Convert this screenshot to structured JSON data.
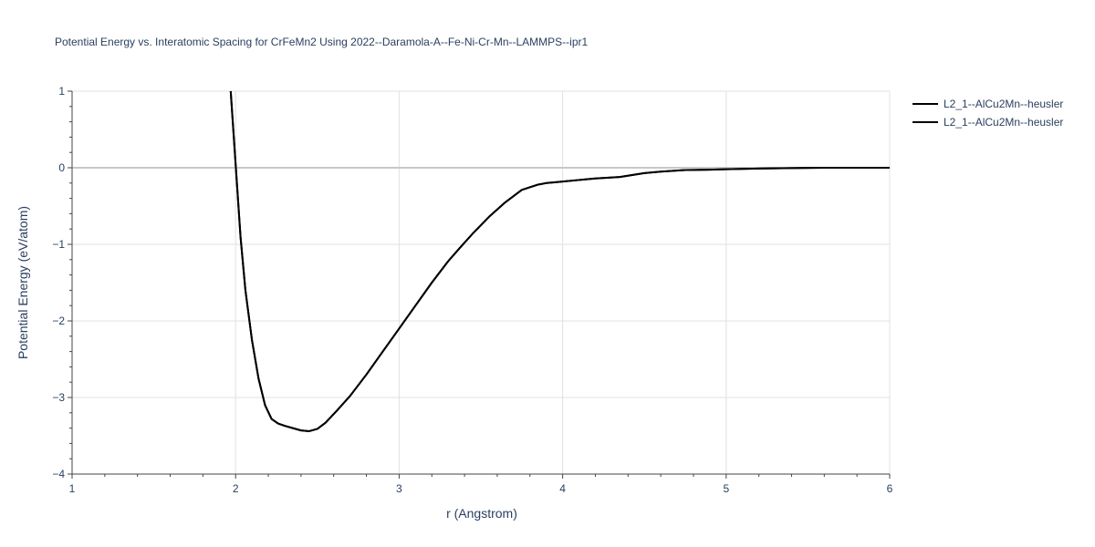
{
  "chart_data": {
    "type": "line",
    "title": "Potential Energy vs. Interatomic Spacing for CrFeMn2 Using 2022--Daramola-A--Fe-Ni-Cr-Mn--LAMMPS--ipr1",
    "xlabel": "r (Angstrom)",
    "ylabel": "Potential Energy (eV/atom)",
    "xlim": [
      1,
      6
    ],
    "ylim": [
      -4,
      1
    ],
    "x_ticks": [
      "1",
      "2",
      "3",
      "4",
      "5",
      "6"
    ],
    "y_ticks": [
      "1",
      "0",
      "−1",
      "−2",
      "−3",
      "−4"
    ],
    "grid": true,
    "legend_position": "top-right",
    "line_color": "#000000",
    "series": [
      {
        "name": "L2_1--AlCu2Mn--heusler",
        "x": [
          1.97,
          2.0,
          2.03,
          2.06,
          2.1,
          2.14,
          2.18,
          2.22,
          2.26,
          2.3,
          2.35,
          2.4,
          2.45,
          2.5,
          2.55,
          2.62,
          2.7,
          2.8,
          2.9,
          3.0,
          3.1,
          3.2,
          3.3,
          3.37,
          3.45,
          3.55,
          3.65,
          3.75,
          3.85,
          3.9,
          3.95,
          4.0,
          4.1,
          4.2,
          4.35,
          4.5,
          4.6,
          4.75,
          4.9,
          5.0,
          5.2,
          5.4,
          5.6,
          5.8,
          6.0
        ],
        "y": [
          1.0,
          0.05,
          -0.9,
          -1.6,
          -2.25,
          -2.75,
          -3.1,
          -3.28,
          -3.34,
          -3.37,
          -3.4,
          -3.43,
          -3.44,
          -3.41,
          -3.33,
          -3.17,
          -2.98,
          -2.7,
          -2.4,
          -2.1,
          -1.8,
          -1.5,
          -1.22,
          -1.05,
          -0.86,
          -0.64,
          -0.45,
          -0.29,
          -0.22,
          -0.2,
          -0.19,
          -0.18,
          -0.16,
          -0.14,
          -0.12,
          -0.07,
          -0.05,
          -0.03,
          -0.025,
          -0.02,
          -0.01,
          -0.005,
          0.0,
          0.0,
          0.0
        ]
      },
      {
        "name": "L2_1--AlCu2Mn--heusler",
        "x": [
          1.97,
          2.0,
          2.03,
          2.06,
          2.1,
          2.14,
          2.18,
          2.22,
          2.26,
          2.3,
          2.35,
          2.4,
          2.45,
          2.5,
          2.55,
          2.62,
          2.7,
          2.8,
          2.9,
          3.0,
          3.1,
          3.2,
          3.3,
          3.37,
          3.45,
          3.55,
          3.65,
          3.75,
          3.85,
          3.9,
          3.95,
          4.0,
          4.1,
          4.2,
          4.35,
          4.5,
          4.6,
          4.75,
          4.9,
          5.0,
          5.2,
          5.4,
          5.6,
          5.8,
          6.0
        ],
        "y": [
          1.0,
          0.05,
          -0.9,
          -1.6,
          -2.25,
          -2.75,
          -3.1,
          -3.28,
          -3.34,
          -3.37,
          -3.4,
          -3.43,
          -3.44,
          -3.41,
          -3.33,
          -3.17,
          -2.98,
          -2.7,
          -2.4,
          -2.1,
          -1.8,
          -1.5,
          -1.22,
          -1.05,
          -0.86,
          -0.64,
          -0.45,
          -0.29,
          -0.22,
          -0.2,
          -0.19,
          -0.18,
          -0.16,
          -0.14,
          -0.12,
          -0.07,
          -0.05,
          -0.03,
          -0.025,
          -0.02,
          -0.01,
          -0.005,
          0.0,
          0.0,
          0.0
        ]
      }
    ]
  }
}
